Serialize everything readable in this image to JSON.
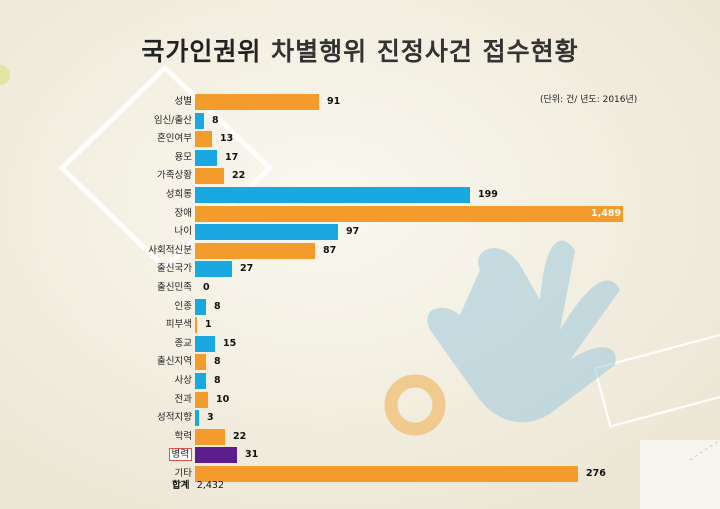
{
  "title": {
    "part1": "국가인권위",
    "part2": "차별행위 진정사건 접수현황"
  },
  "unit_note": "(단위: 건/ 년도: 2016년)",
  "total": {
    "label": "합계",
    "value": "2,432"
  },
  "colors": {
    "orange": "#f39c2b",
    "blue": "#1aa8e0",
    "purple": "#5b1e8c",
    "highlight_border": "#e05050",
    "background": "#f3efe3"
  },
  "chart_data": {
    "type": "bar",
    "orientation": "horizontal",
    "categories": [
      "성별",
      "임신/출산",
      "혼인여부",
      "용모",
      "가족상황",
      "성희롱",
      "장애",
      "나이",
      "사회적신분",
      "출신국가",
      "출신민족",
      "인종",
      "피부색",
      "종교",
      "출신지역",
      "사상",
      "전과",
      "성적지향",
      "학력",
      "병력",
      "기타"
    ],
    "values": [
      91,
      8,
      13,
      17,
      22,
      199,
      1489,
      97,
      87,
      27,
      0,
      8,
      1,
      15,
      8,
      8,
      10,
      3,
      22,
      31,
      276
    ],
    "value_labels": [
      "91",
      "8",
      "13",
      "17",
      "22",
      "199",
      "1,489",
      "97",
      "87",
      "27",
      "0",
      "8",
      "1",
      "15",
      "8",
      "8",
      "10",
      "3",
      "22",
      "31",
      "276"
    ],
    "bar_colors": [
      "orange",
      "blue",
      "orange",
      "blue",
      "orange",
      "blue",
      "orange",
      "blue",
      "orange",
      "blue",
      "orange",
      "blue",
      "orange",
      "blue",
      "orange",
      "blue",
      "orange",
      "blue",
      "orange",
      "purple",
      "orange"
    ],
    "highlighted_category": "병력",
    "scale_note": "bars are not drawn to a single linear scale in the original"
  }
}
